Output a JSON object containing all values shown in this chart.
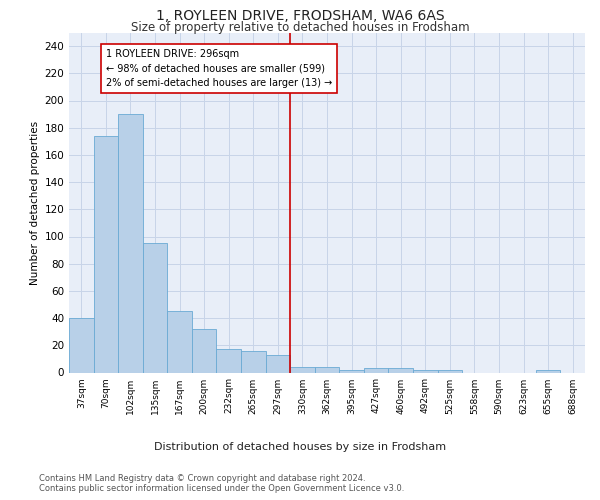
{
  "title": "1, ROYLEEN DRIVE, FRODSHAM, WA6 6AS",
  "subtitle": "Size of property relative to detached houses in Frodsham",
  "xlabel": "Distribution of detached houses by size in Frodsham",
  "ylabel": "Number of detached properties",
  "bin_labels": [
    "37sqm",
    "70sqm",
    "102sqm",
    "135sqm",
    "167sqm",
    "200sqm",
    "232sqm",
    "265sqm",
    "297sqm",
    "330sqm",
    "362sqm",
    "395sqm",
    "427sqm",
    "460sqm",
    "492sqm",
    "525sqm",
    "558sqm",
    "590sqm",
    "623sqm",
    "655sqm",
    "688sqm"
  ],
  "bar_values": [
    40,
    174,
    190,
    95,
    45,
    32,
    17,
    16,
    13,
    4,
    4,
    2,
    3,
    3,
    2,
    2,
    0,
    0,
    0,
    2,
    0
  ],
  "bar_color": "#b8d0e8",
  "bar_edge_color": "#6aaad4",
  "subject_bin_index": 8,
  "subject_line_color": "#cc0000",
  "annotation_text": "1 ROYLEEN DRIVE: 296sqm\n← 98% of detached houses are smaller (599)\n2% of semi-detached houses are larger (13) →",
  "annotation_box_color": "#ffffff",
  "annotation_box_edge": "#cc0000",
  "ylim": [
    0,
    250
  ],
  "yticks": [
    0,
    20,
    40,
    60,
    80,
    100,
    120,
    140,
    160,
    180,
    200,
    220,
    240
  ],
  "grid_color": "#c8d4e8",
  "bg_color": "#e8eef8",
  "title_fontsize": 10,
  "subtitle_fontsize": 8.5,
  "footer_line1": "Contains HM Land Registry data © Crown copyright and database right 2024.",
  "footer_line2": "Contains public sector information licensed under the Open Government Licence v3.0."
}
